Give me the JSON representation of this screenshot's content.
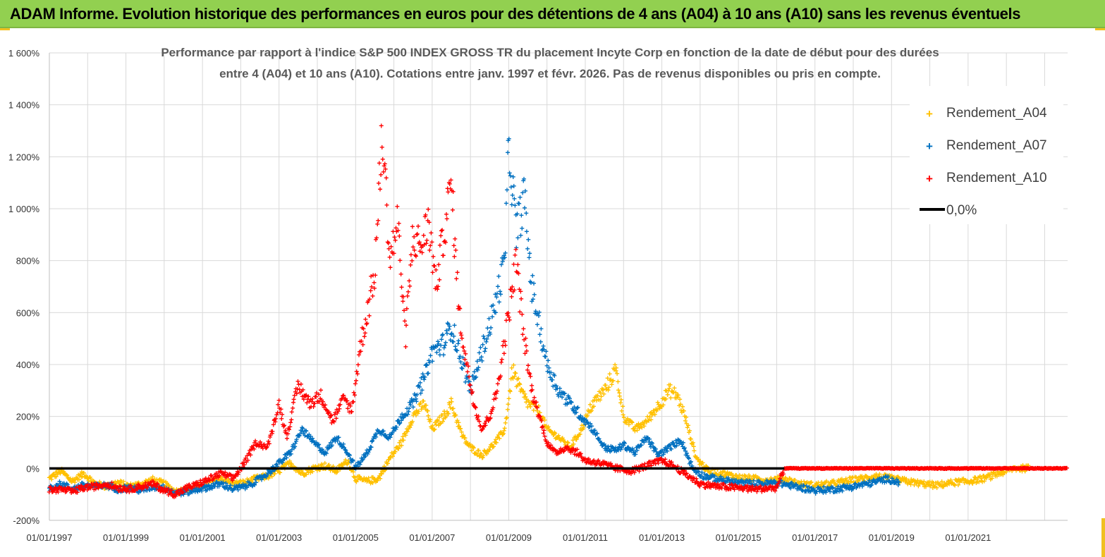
{
  "header": {
    "title": "ADAM Informe. Evolution historique des performances en euros pour des détentions de 4 ans (A04) à 10 ans (A10) sans les revenus éventuels"
  },
  "colors": {
    "banner": "#92d050",
    "a04": "#ffc000",
    "a07": "#0070c0",
    "a10": "#ff0000",
    "zero_line": "#000000",
    "grid": "#d9d9d9"
  },
  "chart_data": {
    "type": "scatter",
    "title_lines": [
      "Performance par rapport à l'indice S&P 500 INDEX GROSS TR  du placement Incyte Corp en fonction de la date de début pour des durées",
      "entre 4 (A04) et 10 ans (A10). Cotations entre janv. 1997 et févr. 2026. Pas de revenus disponibles ou pris en compte."
    ],
    "xlabel": "",
    "ylabel": "",
    "x_range": [
      1997.0,
      2023.6
    ],
    "ylim": [
      -200,
      1600
    ],
    "y_ticks": [
      -200,
      0,
      200,
      400,
      600,
      800,
      1000,
      1200,
      1400,
      1600
    ],
    "y_tick_labels": [
      "-200%",
      "0%",
      "200%",
      "400%",
      "600%",
      "800%",
      "1 000%",
      "1 200%",
      "1 400%",
      "1 600%"
    ],
    "x_ticks": [
      1997,
      1999,
      2001,
      2003,
      2005,
      2007,
      2009,
      2011,
      2013,
      2015,
      2017,
      2019,
      2021
    ],
    "x_tick_labels": [
      "01/01/1997",
      "01/01/1999",
      "01/01/2001",
      "01/01/2003",
      "01/01/2005",
      "01/01/2007",
      "01/01/2009",
      "01/01/2011",
      "01/01/2013",
      "01/01/2015",
      "01/01/2017",
      "01/01/2019",
      "01/01/2021"
    ],
    "legend_position": "top-right",
    "legend": [
      "Rendement_A04",
      "Rendement_A07",
      "Rendement_A10",
      "0,0%"
    ],
    "series": [
      {
        "name": "Rendement_A04",
        "color": "#ffc000",
        "points": [
          [
            1997.0,
            -40
          ],
          [
            1997.3,
            -10
          ],
          [
            1997.6,
            -50
          ],
          [
            1997.9,
            -20
          ],
          [
            1998.2,
            -60
          ],
          [
            1998.5,
            -70
          ],
          [
            1998.8,
            -55
          ],
          [
            1999.1,
            -70
          ],
          [
            1999.4,
            -60
          ],
          [
            1999.7,
            -45
          ],
          [
            2000.0,
            -60
          ],
          [
            2000.3,
            -90
          ],
          [
            2000.6,
            -80
          ],
          [
            2000.9,
            -70
          ],
          [
            2001.2,
            -55
          ],
          [
            2001.5,
            -40
          ],
          [
            2001.8,
            -60
          ],
          [
            2002.1,
            -55
          ],
          [
            2002.4,
            -40
          ],
          [
            2002.7,
            -30
          ],
          [
            2003.0,
            -10
          ],
          [
            2003.3,
            20
          ],
          [
            2003.6,
            -20
          ],
          [
            2003.9,
            0
          ],
          [
            2004.2,
            10
          ],
          [
            2004.5,
            -10
          ],
          [
            2004.8,
            30
          ],
          [
            2005.0,
            -40
          ],
          [
            2005.3,
            -50
          ],
          [
            2005.6,
            -40
          ],
          [
            2005.9,
            40
          ],
          [
            2006.2,
            100
          ],
          [
            2006.5,
            200
          ],
          [
            2006.8,
            250
          ],
          [
            2007.0,
            150
          ],
          [
            2007.3,
            200
          ],
          [
            2007.5,
            250
          ],
          [
            2007.8,
            120
          ],
          [
            2008.0,
            80
          ],
          [
            2008.3,
            50
          ],
          [
            2008.6,
            90
          ],
          [
            2008.9,
            150
          ],
          [
            2009.1,
            380
          ],
          [
            2009.3,
            300
          ],
          [
            2009.5,
            250
          ],
          [
            2009.8,
            220
          ],
          [
            2010.0,
            150
          ],
          [
            2010.3,
            120
          ],
          [
            2010.6,
            80
          ],
          [
            2010.9,
            150
          ],
          [
            2011.2,
            250
          ],
          [
            2011.5,
            300
          ],
          [
            2011.8,
            380
          ],
          [
            2012.0,
            200
          ],
          [
            2012.3,
            150
          ],
          [
            2012.6,
            180
          ],
          [
            2012.9,
            240
          ],
          [
            2013.2,
            300
          ],
          [
            2013.4,
            280
          ],
          [
            2013.6,
            200
          ],
          [
            2013.9,
            40
          ],
          [
            2014.2,
            -10
          ],
          [
            2014.6,
            -20
          ],
          [
            2015.0,
            -35
          ],
          [
            2015.4,
            -40
          ],
          [
            2015.8,
            -45
          ],
          [
            2016.2,
            -40
          ],
          [
            2016.6,
            -60
          ],
          [
            2017.0,
            -65
          ],
          [
            2017.4,
            -60
          ],
          [
            2017.8,
            -50
          ],
          [
            2018.2,
            -40
          ],
          [
            2018.6,
            -30
          ],
          [
            2019.0,
            -40
          ],
          [
            2019.4,
            -50
          ],
          [
            2019.8,
            -60
          ],
          [
            2020.2,
            -65
          ],
          [
            2020.6,
            -55
          ],
          [
            2021.0,
            -50
          ],
          [
            2021.4,
            -40
          ],
          [
            2021.8,
            -20
          ],
          [
            2022.2,
            0
          ],
          [
            2022.6,
            0
          ]
        ]
      },
      {
        "name": "Rendement_A07",
        "color": "#0070c0",
        "points": [
          [
            1997.0,
            -75
          ],
          [
            1997.3,
            -60
          ],
          [
            1997.6,
            -80
          ],
          [
            1997.9,
            -65
          ],
          [
            1998.2,
            -70
          ],
          [
            1998.5,
            -65
          ],
          [
            1998.8,
            -80
          ],
          [
            1999.1,
            -75
          ],
          [
            1999.4,
            -85
          ],
          [
            1999.7,
            -70
          ],
          [
            2000.0,
            -75
          ],
          [
            2000.3,
            -95
          ],
          [
            2000.6,
            -90
          ],
          [
            2000.9,
            -80
          ],
          [
            2001.2,
            -70
          ],
          [
            2001.5,
            -60
          ],
          [
            2001.8,
            -80
          ],
          [
            2002.1,
            -70
          ],
          [
            2002.4,
            -50
          ],
          [
            2002.7,
            -20
          ],
          [
            2003.0,
            20
          ],
          [
            2003.3,
            60
          ],
          [
            2003.6,
            150
          ],
          [
            2003.9,
            100
          ],
          [
            2004.2,
            60
          ],
          [
            2004.5,
            120
          ],
          [
            2004.8,
            60
          ],
          [
            2005.0,
            0
          ],
          [
            2005.3,
            60
          ],
          [
            2005.6,
            150
          ],
          [
            2005.9,
            120
          ],
          [
            2006.2,
            200
          ],
          [
            2006.5,
            250
          ],
          [
            2006.8,
            350
          ],
          [
            2007.0,
            450
          ],
          [
            2007.3,
            480
          ],
          [
            2007.5,
            550
          ],
          [
            2007.8,
            400
          ],
          [
            2008.0,
            300
          ],
          [
            2008.3,
            450
          ],
          [
            2008.6,
            600
          ],
          [
            2008.9,
            800
          ],
          [
            2009.0,
            1250
          ],
          [
            2009.2,
            900
          ],
          [
            2009.4,
            1050
          ],
          [
            2009.6,
            700
          ],
          [
            2009.8,
            550
          ],
          [
            2010.0,
            400
          ],
          [
            2010.3,
            300
          ],
          [
            2010.6,
            250
          ],
          [
            2010.9,
            200
          ],
          [
            2011.2,
            150
          ],
          [
            2011.5,
            80
          ],
          [
            2011.8,
            70
          ],
          [
            2012.0,
            90
          ],
          [
            2012.3,
            60
          ],
          [
            2012.6,
            120
          ],
          [
            2012.9,
            50
          ],
          [
            2013.2,
            80
          ],
          [
            2013.5,
            110
          ],
          [
            2013.8,
            0
          ],
          [
            2014.1,
            -30
          ],
          [
            2014.6,
            -45
          ],
          [
            2015.0,
            -55
          ],
          [
            2015.5,
            -60
          ],
          [
            2016.0,
            -55
          ],
          [
            2016.5,
            -70
          ],
          [
            2017.0,
            -85
          ],
          [
            2017.5,
            -80
          ],
          [
            2018.0,
            -70
          ],
          [
            2018.5,
            -55
          ],
          [
            2018.9,
            -40
          ],
          [
            2019.2,
            -55
          ]
        ]
      },
      {
        "name": "Rendement_A10",
        "color": "#ff0000",
        "points": [
          [
            1997.0,
            -85
          ],
          [
            1997.3,
            -80
          ],
          [
            1997.6,
            -90
          ],
          [
            1997.9,
            -75
          ],
          [
            1998.2,
            -70
          ],
          [
            1998.5,
            -60
          ],
          [
            1998.8,
            -75
          ],
          [
            1999.1,
            -80
          ],
          [
            1999.4,
            -70
          ],
          [
            1999.7,
            -60
          ],
          [
            2000.0,
            -85
          ],
          [
            2000.3,
            -100
          ],
          [
            2000.6,
            -75
          ],
          [
            2000.9,
            -60
          ],
          [
            2001.2,
            -40
          ],
          [
            2001.5,
            -20
          ],
          [
            2001.8,
            -40
          ],
          [
            2002.1,
            20
          ],
          [
            2002.4,
            100
          ],
          [
            2002.7,
            80
          ],
          [
            2003.0,
            250
          ],
          [
            2003.2,
            120
          ],
          [
            2003.5,
            320
          ],
          [
            2003.8,
            250
          ],
          [
            2004.1,
            280
          ],
          [
            2004.4,
            180
          ],
          [
            2004.7,
            270
          ],
          [
            2004.9,
            220
          ],
          [
            2005.1,
            450
          ],
          [
            2005.3,
            600
          ],
          [
            2005.5,
            750
          ],
          [
            2005.7,
            1300
          ],
          [
            2005.9,
            800
          ],
          [
            2006.1,
            950
          ],
          [
            2006.3,
            500
          ],
          [
            2006.5,
            900
          ],
          [
            2006.7,
            850
          ],
          [
            2006.9,
            950
          ],
          [
            2007.1,
            700
          ],
          [
            2007.3,
            900
          ],
          [
            2007.5,
            1100
          ],
          [
            2007.7,
            600
          ],
          [
            2007.9,
            400
          ],
          [
            2008.1,
            250
          ],
          [
            2008.3,
            150
          ],
          [
            2008.5,
            200
          ],
          [
            2008.7,
            300
          ],
          [
            2008.9,
            500
          ],
          [
            2009.1,
            700
          ],
          [
            2009.2,
            800
          ],
          [
            2009.4,
            500
          ],
          [
            2009.6,
            300
          ],
          [
            2009.8,
            200
          ],
          [
            2010.0,
            100
          ],
          [
            2010.2,
            60
          ],
          [
            2010.5,
            80
          ],
          [
            2010.8,
            60
          ],
          [
            2011.0,
            30
          ],
          [
            2011.4,
            20
          ],
          [
            2011.8,
            0
          ],
          [
            2012.2,
            -10
          ],
          [
            2012.6,
            10
          ],
          [
            2013.0,
            30
          ],
          [
            2013.3,
            10
          ],
          [
            2013.6,
            -20
          ],
          [
            2014.0,
            -60
          ],
          [
            2014.5,
            -70
          ],
          [
            2015.0,
            -75
          ],
          [
            2015.5,
            -80
          ],
          [
            2016.0,
            -75
          ],
          [
            2016.2,
            0
          ],
          [
            2023.6,
            0
          ]
        ]
      }
    ],
    "zero_line": {
      "name": "0,0%",
      "value": 0,
      "x_start": 1997.0,
      "x_end": 2016.2
    }
  }
}
